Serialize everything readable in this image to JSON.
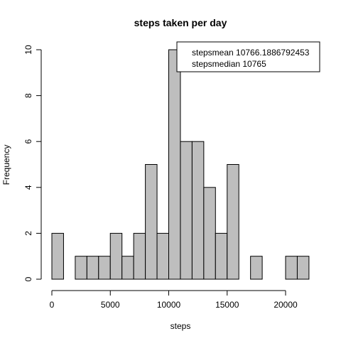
{
  "chart_data": {
    "type": "bar",
    "title": "steps taken per day",
    "xlabel": "steps",
    "ylabel": "Frequency",
    "bin_width": 1000,
    "bins": [
      {
        "start": 0,
        "end": 1000,
        "count": 2
      },
      {
        "start": 1000,
        "end": 2000,
        "count": 0
      },
      {
        "start": 2000,
        "end": 3000,
        "count": 1
      },
      {
        "start": 3000,
        "end": 4000,
        "count": 1
      },
      {
        "start": 4000,
        "end": 5000,
        "count": 1
      },
      {
        "start": 5000,
        "end": 6000,
        "count": 2
      },
      {
        "start": 6000,
        "end": 7000,
        "count": 1
      },
      {
        "start": 7000,
        "end": 8000,
        "count": 2
      },
      {
        "start": 8000,
        "end": 9000,
        "count": 5
      },
      {
        "start": 9000,
        "end": 10000,
        "count": 2
      },
      {
        "start": 10000,
        "end": 11000,
        "count": 10
      },
      {
        "start": 11000,
        "end": 12000,
        "count": 6
      },
      {
        "start": 12000,
        "end": 13000,
        "count": 6
      },
      {
        "start": 13000,
        "end": 14000,
        "count": 4
      },
      {
        "start": 14000,
        "end": 15000,
        "count": 2
      },
      {
        "start": 15000,
        "end": 16000,
        "count": 5
      },
      {
        "start": 16000,
        "end": 17000,
        "count": 0
      },
      {
        "start": 17000,
        "end": 18000,
        "count": 1
      },
      {
        "start": 18000,
        "end": 19000,
        "count": 0
      },
      {
        "start": 19000,
        "end": 20000,
        "count": 0
      },
      {
        "start": 20000,
        "end": 21000,
        "count": 1
      },
      {
        "start": 21000,
        "end": 22000,
        "count": 1
      }
    ],
    "xlim": [
      0,
      22000
    ],
    "ylim": [
      0,
      10
    ],
    "x_ticks": [
      "0",
      "5000",
      "10000",
      "15000",
      "20000"
    ],
    "y_ticks": [
      "0",
      "2",
      "4",
      "6",
      "8",
      "10"
    ],
    "legend_placement": "top-right",
    "legend": [
      "stepsmean 10766.1886792453",
      "stepsmedian 10765"
    ],
    "bar_color": "#bebebe",
    "grid": false
  }
}
